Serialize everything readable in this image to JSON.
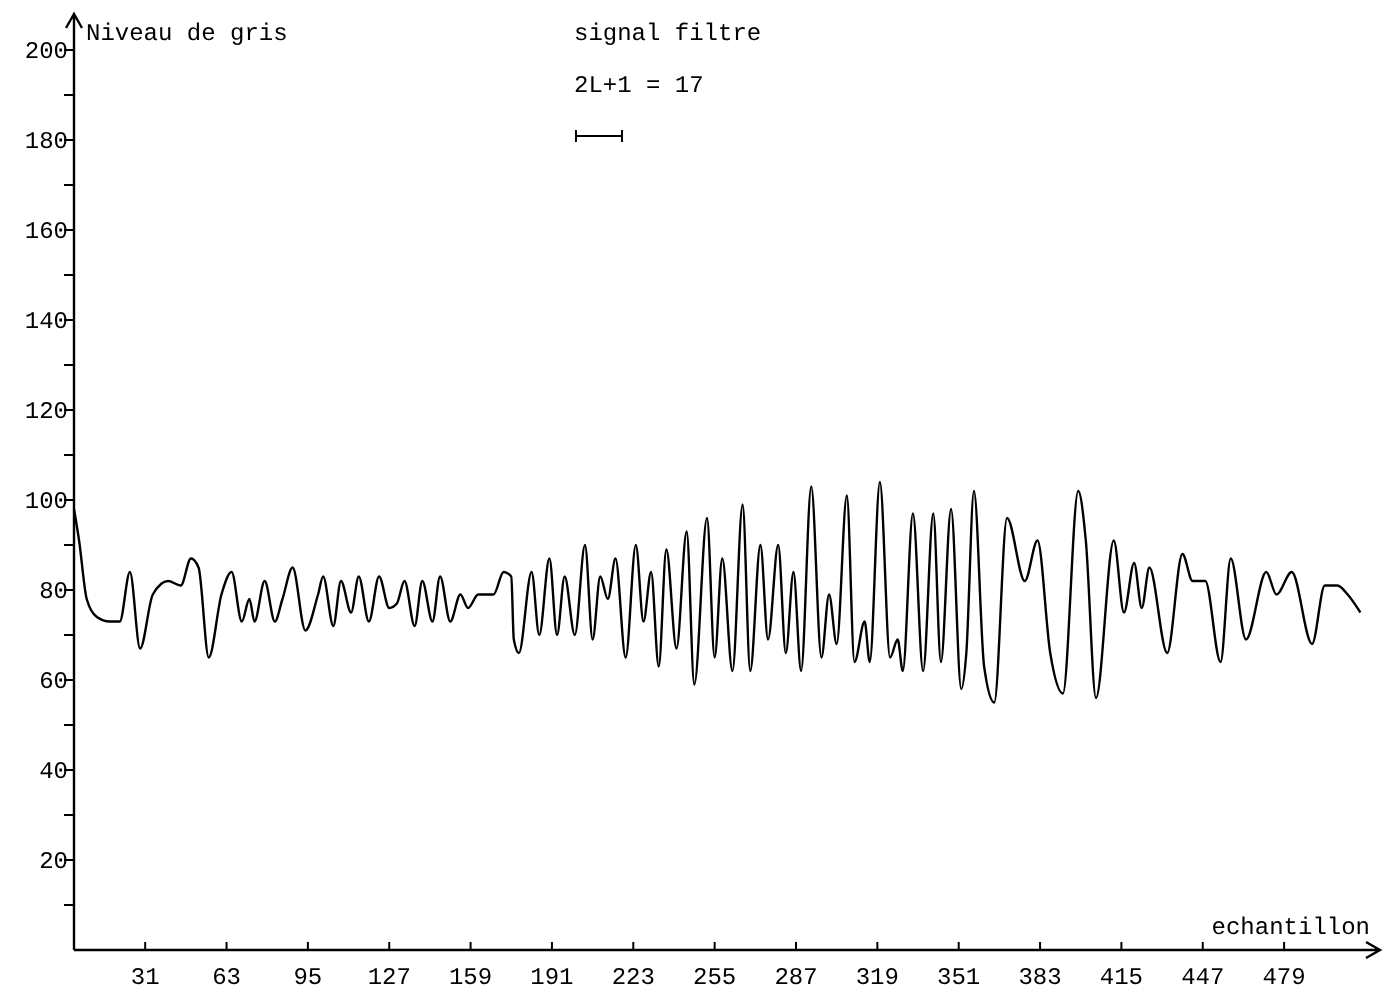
{
  "chart_data": {
    "type": "line",
    "title": "signal filtre",
    "annotations": [
      "2L+1 = 17"
    ],
    "ylabel": "Niveau de gris",
    "xlabel": "echantillon",
    "xlim": [
      3,
      512
    ],
    "ylim": [
      0,
      200
    ],
    "xticks": [
      31,
      63,
      95,
      127,
      159,
      191,
      223,
      255,
      287,
      319,
      351,
      383,
      415,
      447,
      479
    ],
    "yticks": [
      {
        "value": 10,
        "label": null
      },
      20,
      {
        "value": 30,
        "label": null
      },
      40,
      {
        "value": 50,
        "label": null
      },
      60,
      {
        "value": 70,
        "label": null
      },
      80,
      {
        "value": 90,
        "label": null
      },
      100,
      {
        "value": 110,
        "label": null
      },
      120,
      {
        "value": 130,
        "label": null
      },
      140,
      {
        "value": 150,
        "label": null
      },
      160,
      {
        "value": 170,
        "label": null
      },
      180,
      {
        "value": 190,
        "label": null
      },
      200
    ],
    "grid": false,
    "marker": "none",
    "line_style": "solid",
    "series": [
      {
        "color": "#000000",
        "x": [
          3,
          5,
          8,
          12,
          17,
          21,
          25,
          29,
          34,
          40,
          45,
          49,
          52,
          56,
          61,
          65,
          69,
          72,
          74,
          78,
          82,
          85,
          89,
          94,
          99,
          101,
          105,
          108,
          112,
          115,
          119,
          123,
          127,
          130,
          133,
          137,
          140,
          144,
          147,
          151,
          155,
          158,
          162,
          168,
          172,
          175,
          176,
          178,
          183,
          186,
          190,
          193,
          196,
          200,
          204,
          207,
          210,
          213,
          216,
          220,
          224,
          227,
          230,
          233,
          236,
          240,
          244,
          247,
          252,
          255,
          258,
          262,
          266,
          269,
          273,
          276,
          280,
          283,
          286,
          289,
          293,
          297,
          300,
          303,
          307,
          310,
          314,
          316,
          320,
          324,
          327,
          329,
          333,
          337,
          341,
          344,
          348,
          352,
          354,
          357,
          361,
          365,
          370,
          377,
          382,
          387,
          392,
          398,
          401,
          405,
          412,
          416,
          420,
          423,
          426,
          433,
          439,
          443,
          448,
          454,
          458,
          464,
          472,
          476,
          482,
          490,
          495,
          500,
          504,
          509
        ],
        "values": [
          98,
          91,
          78,
          74,
          73,
          73,
          84,
          67,
          79,
          82,
          81,
          87,
          85,
          65,
          79,
          84,
          73,
          78,
          73,
          82,
          73,
          78,
          85,
          71,
          79,
          83,
          72,
          82,
          75,
          83,
          73,
          83,
          76,
          77,
          82,
          72,
          82,
          73,
          83,
          73,
          79,
          76,
          79,
          79,
          84,
          83,
          69,
          66,
          84,
          70,
          87,
          70,
          83,
          70,
          90,
          69,
          83,
          78,
          87,
          65,
          90,
          73,
          84,
          63,
          89,
          67,
          93,
          59,
          96,
          65,
          87,
          62,
          99,
          62,
          90,
          69,
          90,
          66,
          84,
          62,
          103,
          65,
          79,
          68,
          101,
          64,
          73,
          64,
          104,
          65,
          69,
          62,
          97,
          62,
          97,
          64,
          98,
          58,
          66,
          102,
          63,
          55,
          96,
          82,
          91,
          66,
          57,
          102,
          91,
          56,
          91,
          75,
          86,
          76,
          85,
          66,
          88,
          82,
          82,
          64,
          87,
          69,
          84,
          79,
          84,
          68,
          81,
          81,
          79,
          75
        ]
      }
    ]
  }
}
